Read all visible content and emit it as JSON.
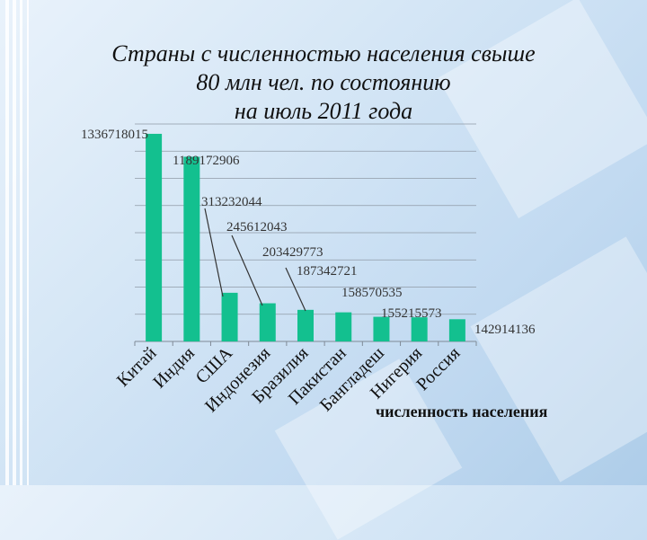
{
  "chart_data": {
    "type": "bar",
    "title_lines": [
      "Страны с численностью населения свыше",
      "80 млн чел. по состоянию",
      "на июль 2011 года"
    ],
    "categories": [
      "Китай",
      "Индия",
      "США",
      "Индонезия",
      "Бразилия",
      "Пакистан",
      "Бангладеш",
      "Нигерия",
      "Россия"
    ],
    "series": [
      {
        "name": "численность населения",
        "values": [
          1336718015,
          1189172906,
          313232044,
          245612043,
          203429773,
          187342721,
          158570535,
          155215573,
          142914136
        ]
      }
    ],
    "data_labels": [
      "1336718015",
      "1189172906",
      "313232044",
      "245612043",
      "203429773",
      "187342721",
      "158570535",
      "155215573",
      "142914136"
    ],
    "ylim": [
      0,
      1400000000
    ],
    "grid": true,
    "legend_position": "bottom-right",
    "bar_color": "#13c08f"
  }
}
